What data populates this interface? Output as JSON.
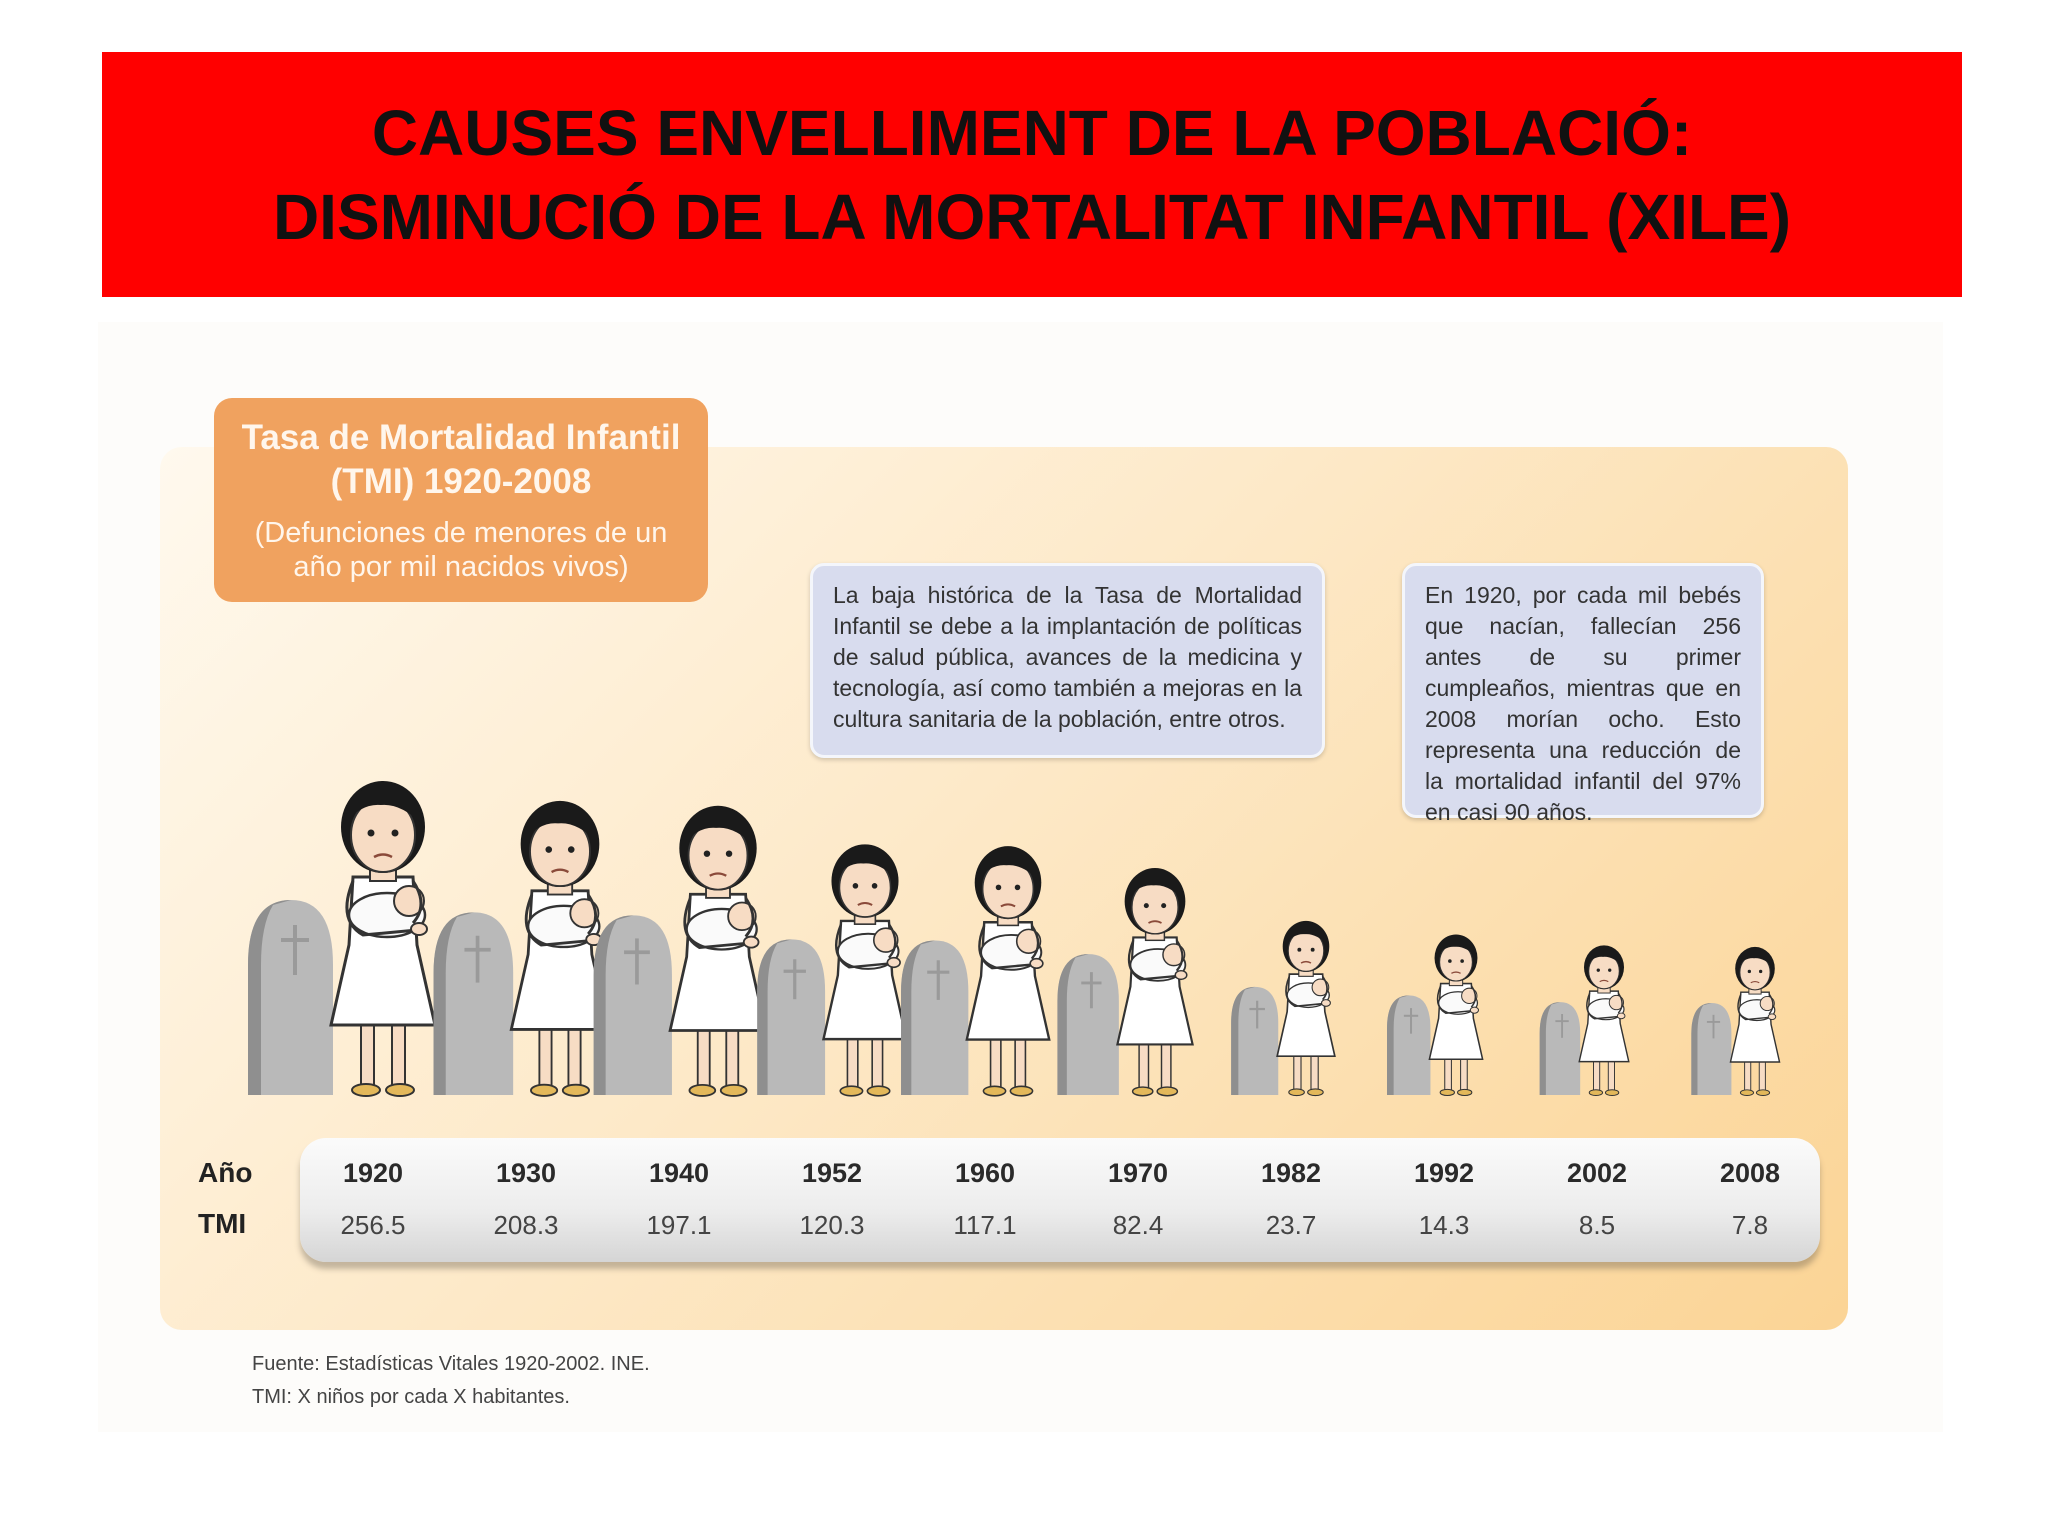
{
  "slide": {
    "title_line1": "CAUSES ENVELLIMENT DE LA POBLACIÓ:",
    "title_line2": "DISMINUCIÓ DE LA MORTALITAT INFANTIL (XILE)"
  },
  "infographic": {
    "title": "Tasa de Mortalidad Infantil (TMI) 1920-2008",
    "subtitle": "(Defunciones de menores de un año por mil nacidos vivos)",
    "note_1": "La baja histórica de la Tasa de Mortalidad Infantil se debe a la implantación de políticas de salud pública, avances de la medicina y tecnología, así como también a mejoras en la cultura sanitaria de la población, entre otros.",
    "note_2": "En 1920, por cada mil bebés que nacían, fallecían 256 antes de su primer cumpleaños, mientras que en 2008 morían ocho. Esto representa una reducción de la mortalidad infantil del 97% en casi 90 años.",
    "row_label_year": "Año",
    "row_label_tmi": "TMI",
    "source_line1": "Fuente: Estadísticas Vitales 1920-2002. INE.",
    "source_line2": "TMI: X niños por cada X habitantes."
  },
  "colors": {
    "banner": "#ff0000",
    "title_box": "#f0a25f",
    "note_box": "#d8dcee",
    "hair": "#1a1a1a",
    "skin": "#f7dcc4",
    "dress": "#ffffff",
    "tombstone": "#b9b9b9"
  },
  "chart_data": {
    "type": "table",
    "title": "Tasa de Mortalidad Infantil (TMI) 1920-2008",
    "subtitle": "(Defunciones de menores de un año por mil nacidos vivos)",
    "categories": [
      "1920",
      "1930",
      "1940",
      "1952",
      "1960",
      "1970",
      "1982",
      "1992",
      "2002",
      "2008"
    ],
    "series": [
      {
        "name": "TMI",
        "values": [
          256.5,
          208.3,
          197.1,
          120.3,
          117.1,
          82.4,
          23.7,
          14.3,
          8.5,
          7.8
        ]
      }
    ],
    "value_labels": [
      "256.5",
      "208.3",
      "197.1",
      "120.3",
      "117.1",
      "82.4",
      "23.7",
      "14.3",
      "8.5",
      "7.8"
    ],
    "xlabel": "Año",
    "ylabel": "TMI",
    "markers": "pictogram of mother holding baby beside a tombstone, size decreasing with TMI"
  }
}
